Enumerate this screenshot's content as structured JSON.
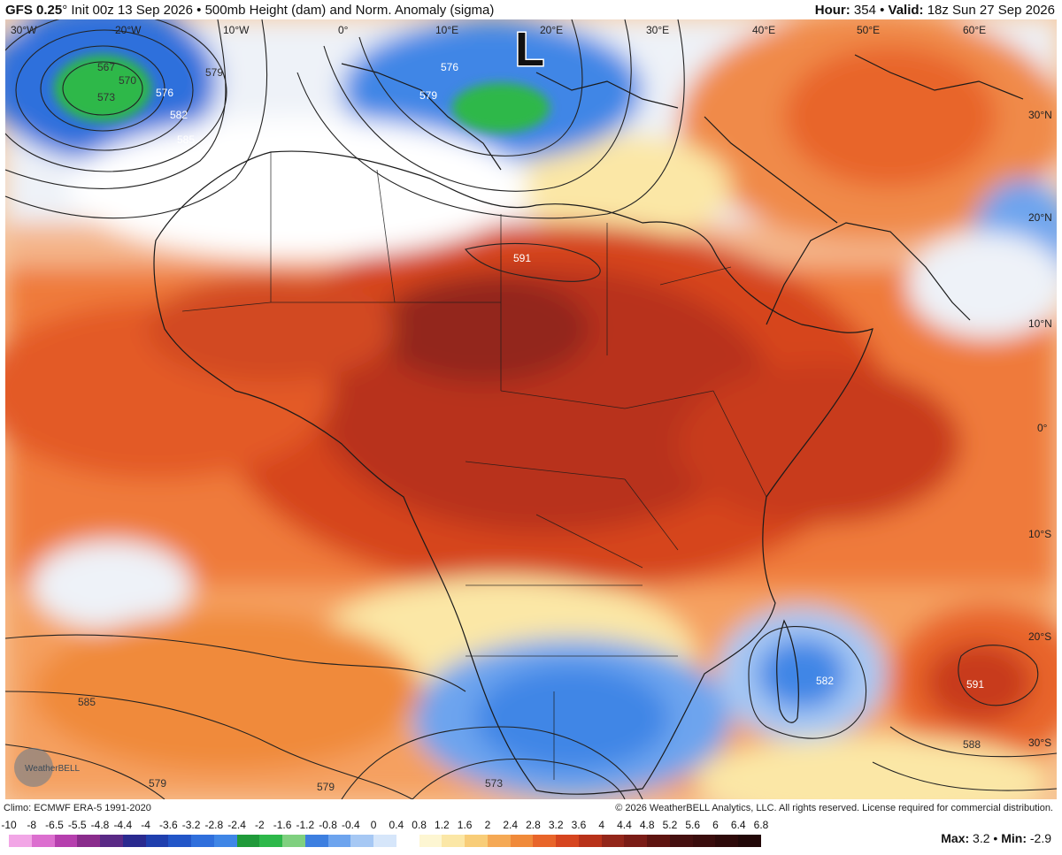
{
  "header": {
    "model": "GFS 0.25",
    "degree": "°",
    "init": " Init 00z 13 Sep 2026",
    "bullet": " • ",
    "product": "500mb Height (dam) and Norm. Anomaly (sigma)",
    "hour_label": "Hour:",
    "hour_value": " 354 • ",
    "valid_label": "Valid:",
    "valid_value": " 18z Sun 27 Sep 2026"
  },
  "map": {
    "low_marker": "L",
    "lon_labels": [
      "30°W",
      "20°W",
      "10°W",
      "0°",
      "10°E",
      "20°E",
      "30°E",
      "40°E",
      "50°E",
      "60°E"
    ],
    "lat_labels": [
      "30°N",
      "20°N",
      "10°N",
      "0°",
      "10°S",
      "20°S",
      "30°S"
    ],
    "contour_labels": [
      "567",
      "570",
      "573",
      "576",
      "579",
      "582",
      "585",
      "576",
      "579",
      "591",
      "582",
      "591",
      "588",
      "585",
      "579",
      "579",
      "573"
    ],
    "logo_text": "WeatherBELL"
  },
  "footer": {
    "climo": "Climo: ECMWF ERA-5 1991-2020",
    "copyright": "© 2026 WeatherBELL Analytics, LLC. All rights reserved. License required for commercial distribution."
  },
  "scale": {
    "ticks": [
      "-10",
      "-8",
      "-6.5",
      "-5.5",
      "-4.8",
      "-4.4",
      "-4",
      "-3.6",
      "-3.2",
      "-2.8",
      "-2.4",
      "-2",
      "-1.6",
      "-1.2",
      "-0.8",
      "-0.4",
      "0",
      "0.4",
      "0.8",
      "1.2",
      "1.6",
      "2",
      "2.4",
      "2.8",
      "3.2",
      "3.6",
      "4",
      "4.4",
      "4.8",
      "5.2",
      "5.6",
      "6",
      "6.4",
      "6.8"
    ],
    "colors": [
      "#f2a6e6",
      "#dc6fcf",
      "#b63fae",
      "#8a2c8c",
      "#5a2a86",
      "#2a2a8f",
      "#1f3fae",
      "#2256c8",
      "#2f6fdc",
      "#3f86e6",
      "#1f9a3a",
      "#2db84a",
      "#7fd07f",
      "#3d7fe0",
      "#6da4ee",
      "#a6c8f4",
      "#d6e6fa",
      "#ffffff",
      "#fdf6d2",
      "#fbe7a6",
      "#f8cd78",
      "#f5a955",
      "#f08a3a",
      "#e8652a",
      "#d6451f",
      "#b8321a",
      "#93261a",
      "#7a1c16",
      "#5e1410",
      "#451010",
      "#3a0d0d",
      "#2e0a0a",
      "#220808"
    ],
    "max_label": "Max:",
    "max_value": " 3.2 • ",
    "min_label": "Min:",
    "min_value": " -2.9"
  }
}
